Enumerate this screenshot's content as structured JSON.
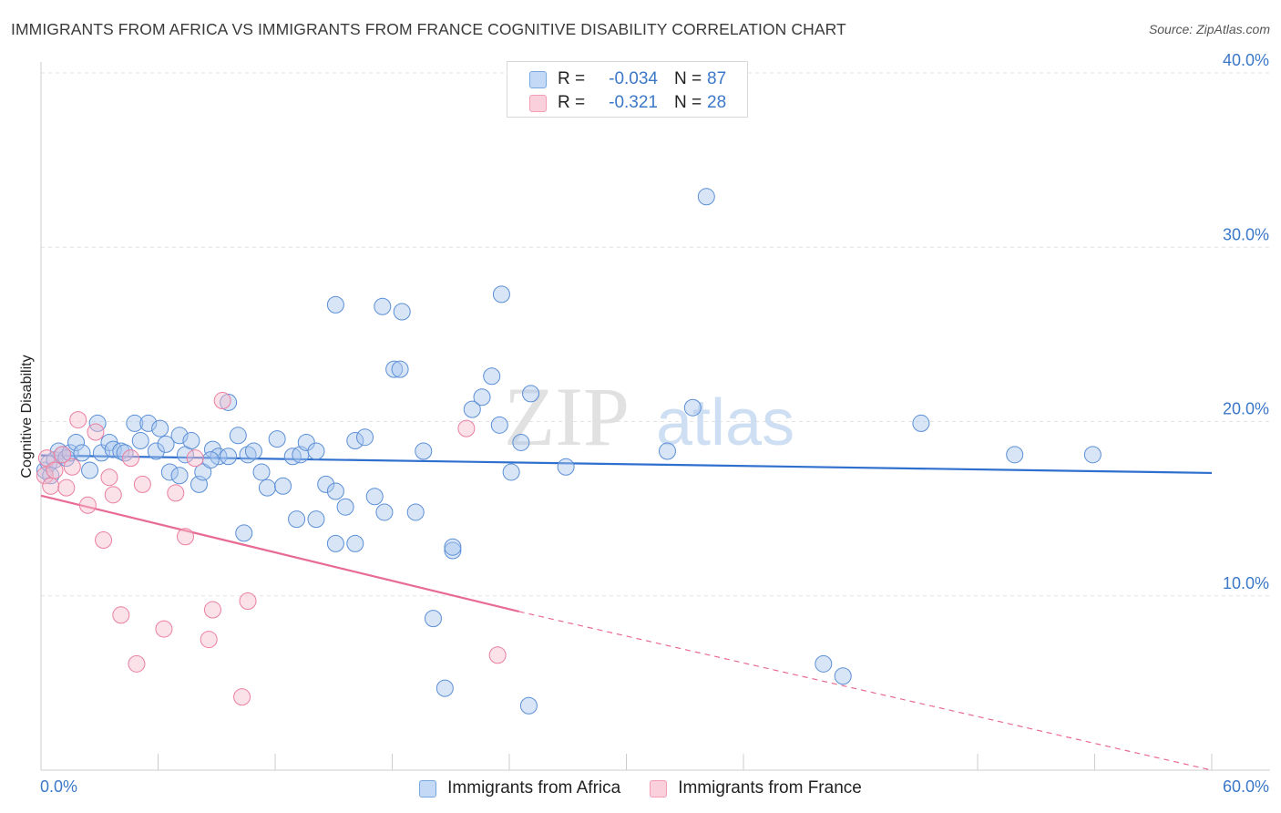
{
  "header": {
    "title": "IMMIGRANTS FROM AFRICA VS IMMIGRANTS FROM FRANCE COGNITIVE DISABILITY CORRELATION CHART",
    "source": "Source: ZipAtlas.com"
  },
  "watermark": {
    "zip": "ZIP",
    "atlas": "atlas"
  },
  "legend": {
    "rows": [
      {
        "r_label": "R =",
        "r_value": "-0.034",
        "n_label": "N =",
        "n_value": "87",
        "color": "#7aa7e0"
      },
      {
        "r_label": "R =",
        "r_value": "-0.321",
        "n_label": "N =",
        "n_value": "28",
        "color": "#f29cb6"
      }
    ]
  },
  "bottom_legend": {
    "africa": "Immigrants from Africa",
    "france": "Immigrants from France"
  },
  "chart_data": {
    "type": "scatter",
    "title": "IMMIGRANTS FROM AFRICA VS IMMIGRANTS FROM FRANCE COGNITIVE DISABILITY CORRELATION CHART",
    "xlabel": "",
    "ylabel": "Cognitive Disability",
    "xlim": [
      0,
      60
    ],
    "ylim": [
      0,
      40
    ],
    "x_tick_labels": [
      "0.0%",
      "60.0%"
    ],
    "y_ticks": [
      {
        "value": 10,
        "label": "10.0%"
      },
      {
        "value": 20,
        "label": "20.0%"
      },
      {
        "value": 30,
        "label": "30.0%"
      },
      {
        "value": 40,
        "label": "40.0%"
      }
    ],
    "grid": true,
    "series": [
      {
        "name": "Immigrants from Africa",
        "color": "#7aa7e0",
        "stroke": "#5b8fd6",
        "points": [
          [
            0.2,
            17.2
          ],
          [
            0.4,
            17.6
          ],
          [
            0.5,
            16.9
          ],
          [
            0.7,
            17.8
          ],
          [
            0.9,
            18.3
          ],
          [
            1.1,
            18.1
          ],
          [
            1.3,
            17.9
          ],
          [
            1.5,
            18.2
          ],
          [
            1.8,
            18.8
          ],
          [
            2.1,
            18.2
          ],
          [
            2.5,
            17.2
          ],
          [
            2.9,
            19.9
          ],
          [
            3.1,
            18.2
          ],
          [
            3.5,
            18.8
          ],
          [
            3.7,
            18.4
          ],
          [
            4.1,
            18.3
          ],
          [
            4.3,
            18.2
          ],
          [
            4.8,
            19.9
          ],
          [
            5.1,
            18.9
          ],
          [
            5.5,
            19.9
          ],
          [
            5.9,
            18.3
          ],
          [
            6.1,
            19.6
          ],
          [
            6.4,
            18.7
          ],
          [
            6.6,
            17.1
          ],
          [
            7.1,
            19.2
          ],
          [
            7.4,
            18.1
          ],
          [
            7.7,
            18.9
          ],
          [
            8.1,
            16.4
          ],
          [
            8.3,
            17.1
          ],
          [
            8.8,
            18.4
          ],
          [
            9.1,
            18.0
          ],
          [
            9.6,
            18.0
          ],
          [
            10.1,
            19.2
          ],
          [
            10.6,
            18.1
          ],
          [
            10.9,
            18.3
          ],
          [
            11.3,
            17.1
          ],
          [
            11.6,
            16.2
          ],
          [
            12.1,
            19.0
          ],
          [
            12.4,
            16.3
          ],
          [
            12.9,
            18.0
          ],
          [
            13.3,
            18.1
          ],
          [
            13.6,
            18.8
          ],
          [
            14.1,
            18.3
          ],
          [
            14.6,
            16.4
          ],
          [
            15.1,
            16.0
          ],
          [
            15.6,
            15.1
          ],
          [
            16.1,
            18.9
          ],
          [
            16.6,
            19.1
          ],
          [
            17.1,
            15.7
          ],
          [
            17.6,
            14.8
          ],
          [
            18.1,
            23.0
          ],
          [
            18.4,
            23.0
          ],
          [
            19.2,
            14.8
          ],
          [
            19.6,
            18.3
          ],
          [
            20.1,
            8.7
          ],
          [
            20.7,
            4.7
          ],
          [
            21.1,
            12.6
          ],
          [
            22.1,
            20.7
          ],
          [
            22.6,
            21.4
          ],
          [
            23.1,
            22.6
          ],
          [
            23.6,
            27.3
          ],
          [
            24.1,
            17.1
          ],
          [
            24.6,
            18.8
          ],
          [
            25.1,
            21.6
          ],
          [
            26.9,
            17.4
          ],
          [
            32.1,
            18.3
          ],
          [
            33.4,
            20.8
          ],
          [
            34.1,
            32.9
          ],
          [
            40.1,
            6.1
          ],
          [
            41.1,
            5.4
          ],
          [
            45.1,
            19.9
          ],
          [
            49.9,
            18.1
          ],
          [
            53.9,
            18.1
          ],
          [
            15.1,
            26.7
          ],
          [
            17.5,
            26.6
          ],
          [
            18.5,
            26.3
          ],
          [
            10.4,
            13.6
          ],
          [
            13.1,
            14.4
          ],
          [
            14.1,
            14.4
          ],
          [
            15.1,
            13.0
          ],
          [
            16.1,
            13.0
          ],
          [
            21.1,
            12.8
          ],
          [
            23.5,
            19.8
          ],
          [
            25.0,
            3.7
          ],
          [
            7.1,
            16.9
          ],
          [
            8.7,
            17.8
          ],
          [
            9.6,
            21.1
          ]
        ]
      },
      {
        "name": "Immigrants from France",
        "color": "#f29cb6",
        "stroke": "#ea7fa1",
        "points": [
          [
            0.2,
            16.9
          ],
          [
            0.3,
            17.9
          ],
          [
            0.5,
            16.3
          ],
          [
            0.7,
            17.2
          ],
          [
            1.1,
            18.1
          ],
          [
            1.3,
            16.2
          ],
          [
            1.6,
            17.4
          ],
          [
            1.9,
            20.1
          ],
          [
            2.4,
            15.2
          ],
          [
            2.8,
            19.4
          ],
          [
            3.2,
            13.2
          ],
          [
            3.5,
            16.8
          ],
          [
            3.7,
            15.8
          ],
          [
            4.1,
            8.9
          ],
          [
            4.6,
            17.9
          ],
          [
            4.9,
            6.1
          ],
          [
            5.2,
            16.4
          ],
          [
            6.3,
            8.1
          ],
          [
            6.9,
            15.9
          ],
          [
            7.4,
            13.4
          ],
          [
            7.9,
            17.9
          ],
          [
            8.6,
            7.5
          ],
          [
            8.8,
            9.2
          ],
          [
            9.3,
            21.2
          ],
          [
            10.3,
            4.2
          ],
          [
            10.6,
            9.7
          ],
          [
            21.8,
            19.6
          ],
          [
            23.4,
            6.6
          ]
        ]
      }
    ],
    "trend_lines": [
      {
        "series": "Immigrants from Africa",
        "x": [
          0,
          60
        ],
        "y": [
          18.06,
          17.05
        ]
      },
      {
        "series": "Immigrants from France",
        "x_solid": [
          0,
          24.5
        ],
        "y_solid": [
          15.75,
          9.1
        ],
        "x_dashed": [
          24.5,
          60
        ],
        "y_dashed": [
          9.1,
          0
        ]
      }
    ]
  }
}
